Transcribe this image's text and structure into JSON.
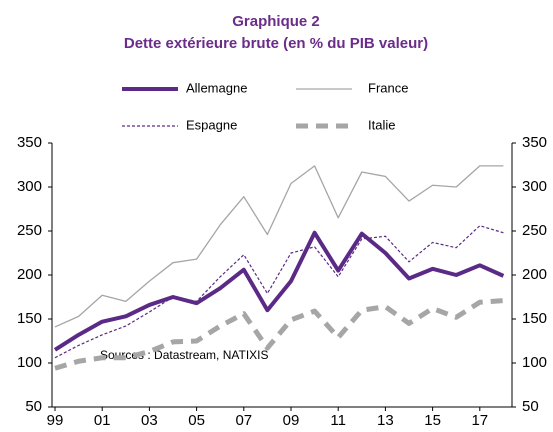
{
  "chart_data": {
    "type": "line",
    "title": "Graphique 2",
    "subtitle": "Dette extérieure brute (en % du PIB valeur)",
    "annotation": "Sources : Datastream, NATIXIS",
    "categories": [
      "99",
      null,
      "01",
      null,
      "03",
      null,
      "05",
      null,
      "07",
      null,
      "09",
      null,
      "11",
      null,
      "13",
      null,
      "15",
      null,
      "17",
      null
    ],
    "series": [
      {
        "name": "Allemagne",
        "color": "#5b2a86",
        "values": [
          115,
          132,
          147,
          153,
          166,
          175,
          168,
          185,
          206,
          160,
          193,
          248,
          205,
          247,
          225,
          196,
          207,
          200,
          211,
          199
        ]
      },
      {
        "name": "France",
        "color": "#a6a6a6",
        "values": [
          141,
          153,
          177,
          170,
          193,
          214,
          218,
          257,
          289,
          246,
          304,
          324,
          265,
          317,
          312,
          284,
          302,
          300,
          324,
          324
        ]
      },
      {
        "name": "Espagne",
        "color": "#5b2a86",
        "values": [
          106,
          120,
          132,
          142,
          158,
          175,
          170,
          198,
          223,
          179,
          225,
          232,
          198,
          241,
          244,
          215,
          237,
          231,
          256,
          248
        ]
      },
      {
        "name": "Italie",
        "color": "#a6a6a6",
        "values": [
          94,
          102,
          106,
          106,
          113,
          124,
          125,
          142,
          156,
          117,
          149,
          159,
          129,
          160,
          164,
          145,
          162,
          152,
          169,
          171
        ]
      }
    ],
    "ylim": [
      50,
      350
    ],
    "yticks": [
      50,
      100,
      150,
      200,
      250,
      300,
      350
    ],
    "y2lim": [
      50,
      350
    ],
    "y2ticks": [
      50,
      100,
      150,
      200,
      250,
      300,
      350
    ],
    "grid": false
  }
}
